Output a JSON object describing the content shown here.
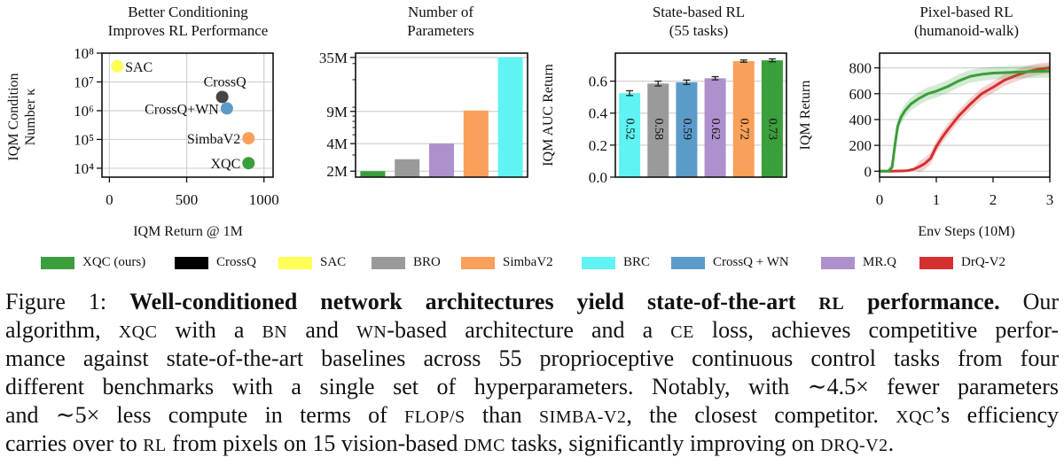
{
  "colors": {
    "XQC": "#3a9e3a",
    "CrossQ": "#444444",
    "SAC": "#ffff55",
    "BRO": "#9a9a9a",
    "SimbaV2": "#f9a05a",
    "BRC": "#5ff3f3",
    "CrossQ+WN": "#5b9bc9",
    "MR.Q": "#ad90cc",
    "DrQ-V2": "#d62f2f"
  },
  "chart_data": [
    {
      "type": "scatter",
      "title": [
        "Better Conditioning",
        "Improves RL Performance"
      ],
      "xlabel": "IQM Return @ 1M",
      "ylabel": [
        "IQM Condition",
        "Number κ"
      ],
      "xlim": [
        -48,
        1059
      ],
      "ylim_log10": [
        3.69,
        8.0
      ],
      "yscale": "log",
      "xticks": [
        0,
        500,
        1000
      ],
      "xtick_labels": [
        "0",
        "500",
        "1000"
      ],
      "yticks_log10": [
        4,
        5,
        6,
        7,
        8
      ],
      "ytick_labels": [
        "10⁴",
        "10⁵",
        "10⁶",
        "10⁷",
        "10⁸"
      ],
      "grid": true,
      "points": [
        {
          "name": "SAC",
          "label": "SAC",
          "x": 50,
          "y": 35000000,
          "label_side": "right"
        },
        {
          "name": "CrossQ",
          "label": "CrossQ",
          "x": 730,
          "y": 3000000,
          "label_side": "above"
        },
        {
          "name": "CrossQ+WN",
          "label": "CrossQ+WN",
          "x": 760,
          "y": 1200000,
          "label_side": "left"
        },
        {
          "name": "SimbaV2",
          "label": "SimbaV2",
          "x": 900,
          "y": 110000,
          "label_side": "left"
        },
        {
          "name": "XQC",
          "label": "XQC",
          "x": 900,
          "y": 15000,
          "label_side": "left"
        }
      ]
    },
    {
      "type": "bar",
      "title": [
        "Number of",
        "Parameters"
      ],
      "yscale": "log",
      "ylim_M": [
        1.72,
        39
      ],
      "yticks_M": [
        2,
        4,
        9,
        35
      ],
      "ytick_labels": [
        "2M",
        "4M",
        "9M",
        "35M"
      ],
      "grid": true,
      "categories": [
        "XQC",
        "BRO",
        "MR.Q",
        "SimbaV2",
        "BRC"
      ],
      "values_M": [
        2.0,
        2.7,
        4.0,
        9.2,
        35
      ]
    },
    {
      "type": "bar",
      "title": [
        "State-based RL",
        "(55 tasks)"
      ],
      "ylabel": "IQM AUC Return",
      "ylim": [
        0,
        0.775
      ],
      "yticks": [
        0.0,
        0.2,
        0.4,
        0.6
      ],
      "ytick_labels": [
        "0.0",
        "0.2",
        "0.4",
        "0.6"
      ],
      "grid": true,
      "categories": [
        "BRC",
        "BRO",
        "CrossQ+WN",
        "MR.Q",
        "SimbaV2",
        "XQC"
      ],
      "values": [
        0.525,
        0.585,
        0.593,
        0.618,
        0.725,
        0.73
      ],
      "errors": [
        0.015,
        0.015,
        0.014,
        0.01,
        0.007,
        0.009
      ],
      "data_labels": [
        "0.52",
        "0.58",
        "0.59",
        "0.62",
        "0.72",
        "0.73"
      ]
    },
    {
      "type": "line",
      "title": [
        "Pixel-based RL",
        "(humanoid-walk)"
      ],
      "xlabel": "Env Steps (10M)",
      "ylabel": "IQM Return",
      "xlim": [
        0,
        3
      ],
      "ylim": [
        -46,
        914
      ],
      "xticks": [
        0,
        1,
        2,
        3
      ],
      "xtick_labels": [
        "0",
        "1",
        "2",
        "3"
      ],
      "yticks": [
        0,
        200,
        400,
        600,
        800
      ],
      "ytick_labels": [
        "0",
        "200",
        "400",
        "600",
        "800"
      ],
      "grid": true,
      "series": [
        {
          "name": "DrQ-V2",
          "band": 45,
          "x": [
            0,
            0.2,
            0.4,
            0.5,
            0.6,
            0.7,
            0.8,
            0.9,
            1.0,
            1.1,
            1.2,
            1.4,
            1.6,
            1.8,
            2.0,
            2.2,
            2.4,
            2.6,
            2.8,
            3.0
          ],
          "y": [
            0,
            0,
            2,
            5,
            15,
            35,
            60,
            100,
            190,
            260,
            320,
            430,
            520,
            600,
            650,
            705,
            740,
            770,
            790,
            800
          ]
        },
        {
          "name": "XQC",
          "band": 50,
          "x": [
            0,
            0.15,
            0.22,
            0.27,
            0.32,
            0.38,
            0.45,
            0.55,
            0.7,
            0.85,
            1.0,
            1.2,
            1.4,
            1.6,
            1.8,
            2.0,
            2.3,
            2.6,
            3.0
          ],
          "y": [
            0,
            0,
            30,
            200,
            350,
            420,
            470,
            520,
            565,
            600,
            620,
            655,
            700,
            735,
            750,
            760,
            765,
            770,
            775
          ]
        }
      ]
    }
  ],
  "legend": [
    {
      "key": "XQC",
      "label": "XQC (ours)"
    },
    {
      "key": "CrossQ",
      "label": "CrossQ"
    },
    {
      "key": "SAC",
      "label": "SAC"
    },
    {
      "key": "BRO",
      "label": "BRO"
    },
    {
      "key": "SimbaV2",
      "label": "SimbaV2"
    },
    {
      "key": "BRC",
      "label": "BRC"
    },
    {
      "key": "CrossQ+WN",
      "label": "CrossQ + WN"
    },
    {
      "key": "MR.Q",
      "label": "MR.Q"
    },
    {
      "key": "DrQ-V2",
      "label": "DrQ-V2"
    }
  ],
  "caption": {
    "lines": [
      [
        {
          "t": "Figure 1:  "
        },
        {
          "t": "Well-conditioned network architectures yield state-of-the-art ",
          "b": true
        },
        {
          "t": "RL",
          "b": true,
          "sc": true
        },
        {
          "t": " performance.",
          "b": true
        },
        {
          "t": " Our"
        }
      ],
      [
        {
          "t": "algorithm, "
        },
        {
          "t": "XQC",
          "sc": true
        },
        {
          "t": " with a "
        },
        {
          "t": "BN",
          "sc": true
        },
        {
          "t": " and "
        },
        {
          "t": "WN",
          "sc": true
        },
        {
          "t": "-based architecture and a "
        },
        {
          "t": "CE",
          "sc": true
        },
        {
          "t": " loss, achieves competitive perfor-"
        }
      ],
      [
        {
          "t": "mance against state-of-the-art baselines across 55 proprioceptive continuous control tasks from four"
        }
      ],
      [
        {
          "t": "different benchmarks with a single set of hyperparameters. Notably, with ∼4.5× fewer parameters"
        }
      ],
      [
        {
          "t": "and ∼5× less compute in terms of "
        },
        {
          "t": "FLOP/S",
          "sc": true
        },
        {
          "t": " than "
        },
        {
          "t": "SIMBA-V2",
          "sc": true
        },
        {
          "t": ", the closest competitor. "
        },
        {
          "t": "XQC",
          "sc": true
        },
        {
          "t": "’s efficiency"
        }
      ],
      [
        {
          "t": "carries over to "
        },
        {
          "t": "RL",
          "sc": true
        },
        {
          "t": " from pixels on 15 vision-based "
        },
        {
          "t": "DMC",
          "sc": true
        },
        {
          "t": " tasks, significantly improving on "
        },
        {
          "t": "DRQ-V2",
          "sc": true
        },
        {
          "t": "."
        }
      ]
    ]
  }
}
